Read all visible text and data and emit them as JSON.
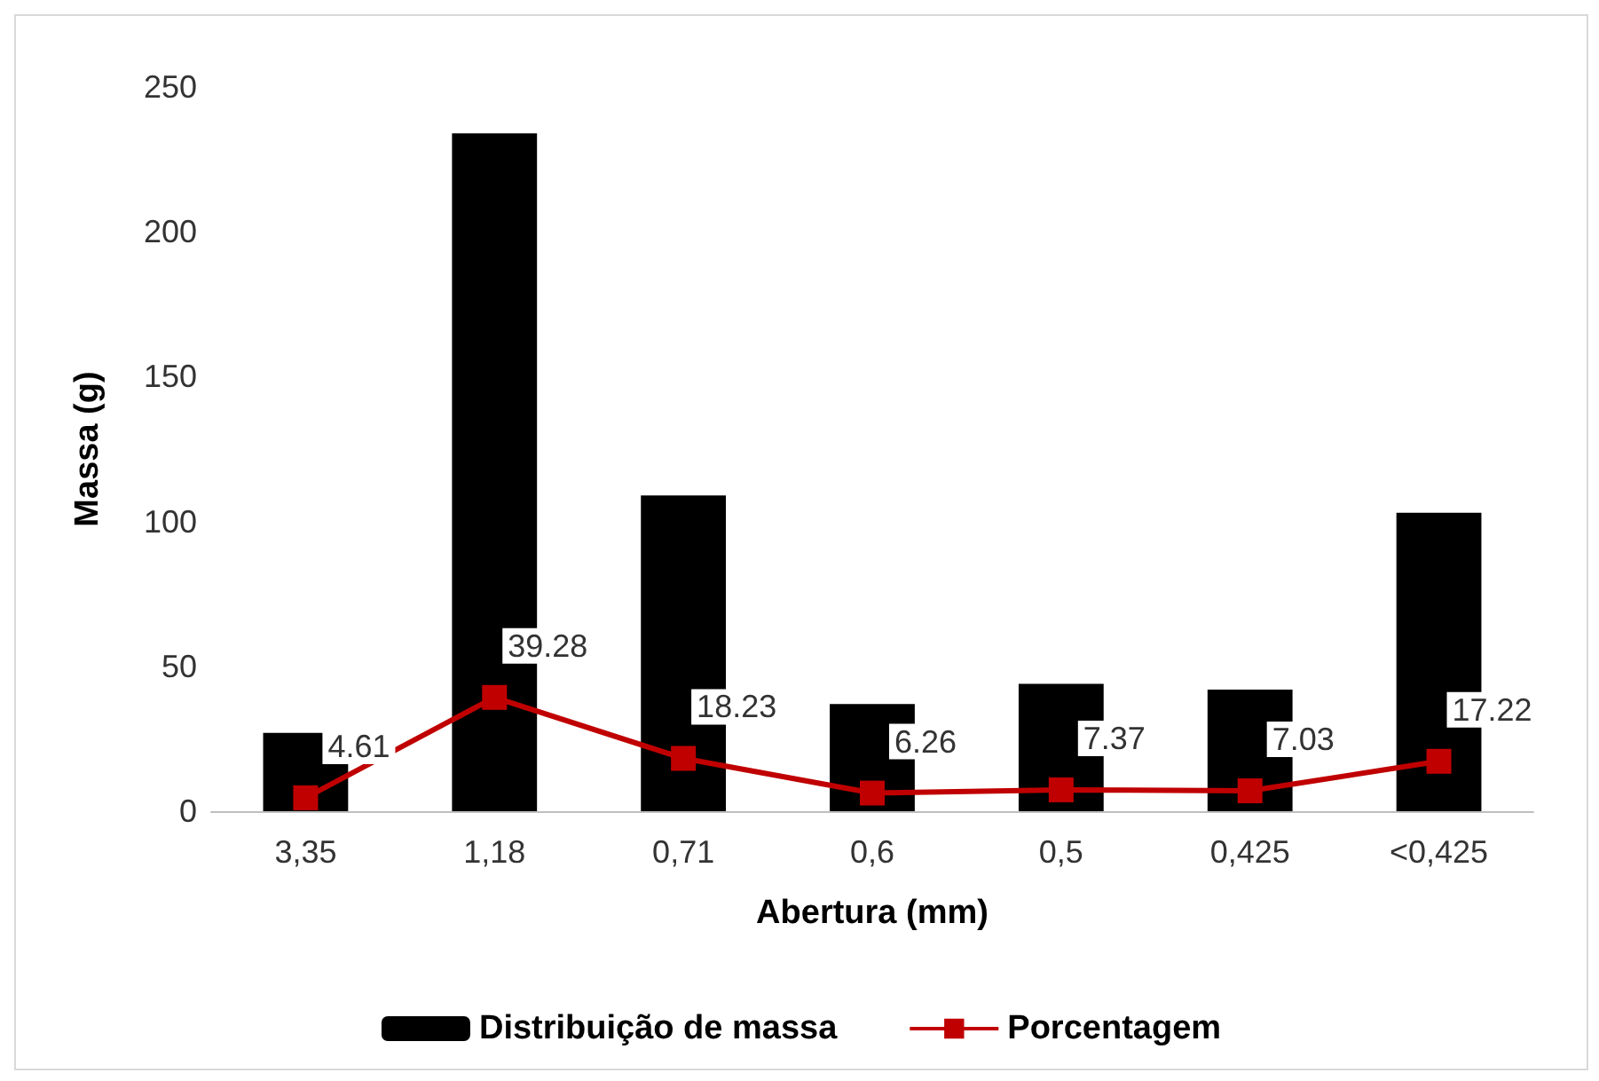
{
  "chart_data": {
    "type": "bar",
    "xlabel": "Abertura (mm)",
    "ylabel": "Massa (g)",
    "categories": [
      "3,35",
      "1,18",
      "0,71",
      "0,6",
      "0,5",
      "0,425",
      "<0,425"
    ],
    "series": [
      {
        "name": "Distribuição de massa",
        "color": "#000000",
        "values": [
          27,
          234,
          109,
          37,
          44,
          42,
          103
        ]
      },
      {
        "name": "Porcentagem",
        "type": "line",
        "color": "#c00000",
        "marker": "square",
        "data_labels": true,
        "values": [
          4.61,
          39.28,
          18.23,
          6.26,
          7.37,
          7.03,
          17.22
        ]
      }
    ],
    "ylim": [
      0,
      250
    ],
    "yticks": [
      0,
      50,
      100,
      150,
      200,
      250
    ],
    "grid": false,
    "legend": "bottom"
  }
}
